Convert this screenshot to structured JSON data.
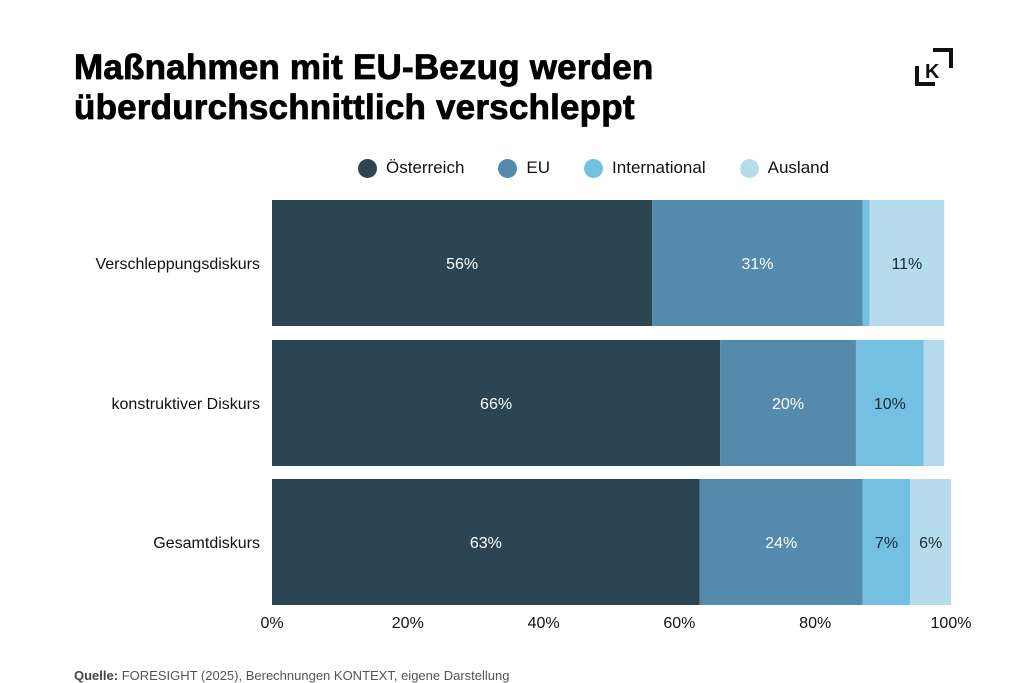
{
  "title_lines": [
    "Maßnahmen mit EU-Bezug werden",
    "überdurchschnittlich verschleppt"
  ],
  "logo": "kontext-k-logo",
  "source": {
    "label": "Quelle:",
    "text": "FORESIGHT (2025), Berechnungen KONTEXT, eigene Darstellung"
  },
  "chart_data": {
    "type": "bar",
    "orientation": "horizontal",
    "stacked": true,
    "title": "Maßnahmen mit EU-Bezug werden überdurchschnittlich verschleppt",
    "categories": [
      "Verschleppungsdiskurs",
      "konstruktiver Diskurs",
      "Gesamtdiskurs"
    ],
    "series": [
      {
        "name": "Österreich",
        "color": "#2c4553",
        "label_color": "#ffffff",
        "values": [
          56,
          66,
          63
        ],
        "labels": [
          "56%",
          "66%",
          "63%"
        ]
      },
      {
        "name": "EU",
        "color": "#548aab",
        "label_color": "#ffffff",
        "values": [
          31,
          20,
          24
        ],
        "labels": [
          "31%",
          "20%",
          "24%"
        ]
      },
      {
        "name": "International",
        "color": "#74c0e3",
        "label_color": "#1b2a33",
        "values": [
          1,
          10,
          7
        ],
        "labels": [
          "",
          "10%",
          "7%"
        ]
      },
      {
        "name": "Ausland",
        "color": "#b5dbec",
        "label_color": "#1b2a33",
        "values": [
          11,
          3,
          6
        ],
        "labels": [
          "11%",
          "",
          "6%"
        ]
      }
    ],
    "xlim": [
      0,
      100
    ],
    "xticks": [
      "0%",
      "20%",
      "40%",
      "60%",
      "80%",
      "100%"
    ],
    "xtick_values": [
      0,
      20,
      40,
      60,
      80,
      100
    ],
    "xlabel": "",
    "ylabel": "",
    "legend": "top",
    "grid": false
  }
}
